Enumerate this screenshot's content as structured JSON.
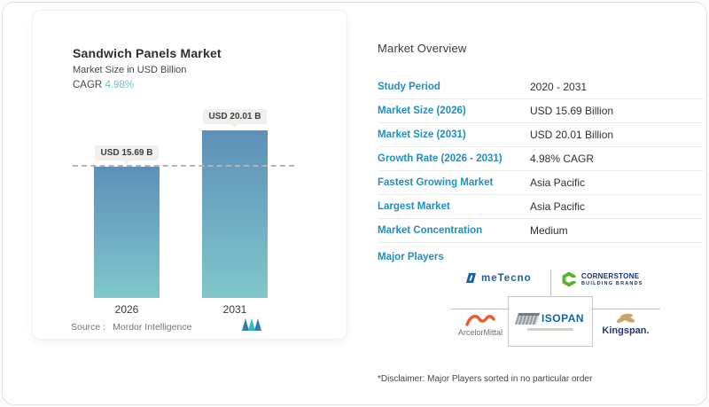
{
  "chart_data": {
    "type": "bar",
    "title": "Sandwich Panels Market",
    "subtitle": "Market Size in USD Billion",
    "categories": [
      "2026",
      "2031"
    ],
    "values": [
      15.69,
      20.01
    ],
    "bar_labels": [
      "USD 15.69 B",
      "USD 20.01 B"
    ],
    "unit": "USD Billion",
    "ylim": [
      0,
      22
    ],
    "reference_line": 15.69,
    "cagr": "4.98%",
    "grid": false,
    "legend": "none",
    "bar_gradient": [
      "#5d8fb7",
      "#80c7cb"
    ]
  },
  "left_card": {
    "title": "Sandwich Panels Market",
    "subtitle": "Market Size in USD Billion",
    "cagr_label": "CAGR",
    "cagr_value": "4.98%",
    "source_label": "Source :",
    "source_value": "Mordor Intelligence"
  },
  "overview": {
    "title": "Market Overview",
    "rows": [
      {
        "label": "Study Period",
        "value": "2020 - 2031"
      },
      {
        "label": "Market Size (2026)",
        "value": "USD 15.69 Billion"
      },
      {
        "label": "Market Size (2031)",
        "value": "USD 20.01 Billion"
      },
      {
        "label": "Growth Rate (2026 - 2031)",
        "value": "4.98% CAGR"
      },
      {
        "label": "Fastest Growing Market",
        "value": "Asia Pacific"
      },
      {
        "label": "Largest Market",
        "value": "Asia Pacific"
      },
      {
        "label": "Market Concentration",
        "value": "Medium"
      }
    ],
    "major_players_label": "Major Players",
    "major_players": [
      "meTecno",
      "Cornerstone Building Brands",
      "ArcelorMittal",
      "ISOPAN",
      "Kingspan"
    ],
    "logos": {
      "metecno": "meTecno",
      "cornerstone_line1": "CORNERSTONE",
      "cornerstone_line2": "BUILDING BRANDS",
      "arcelormittal": "ArcelorMittal",
      "isopan": "ISOPAN",
      "kingspan": "Kingspan."
    },
    "disclaimer": "*Disclaimer: Major Players sorted in no particular order"
  },
  "colors": {
    "accent_blue": "#1e8fc2",
    "teal": "#67c5c9",
    "bar_top": "#5d8fb7",
    "bar_bottom": "#80c7cb"
  }
}
